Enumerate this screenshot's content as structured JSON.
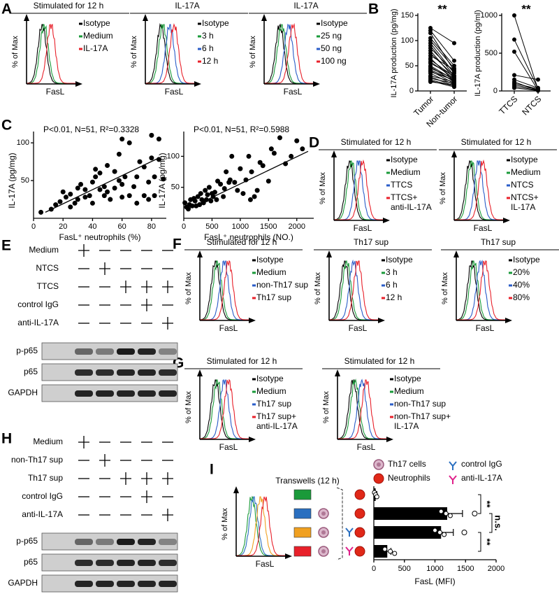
{
  "A": {
    "letter": "A",
    "type": "flow",
    "panels": [
      {
        "title": "Stimulated for 12 h",
        "ylabel": "% of Max",
        "xlabel": "FasL",
        "legend": [
          {
            "name": "Isotype",
            "color": "#000000"
          },
          {
            "name": "Medium",
            "color": "#1a9a3a"
          },
          {
            "name": "IL-17A",
            "color": "#e8202a"
          }
        ]
      },
      {
        "title": "IL-17A",
        "ylabel": "% of Max",
        "xlabel": "FasL",
        "legend": [
          {
            "name": "Isotype",
            "color": "#000000"
          },
          {
            "name": "3 h",
            "color": "#1a9a3a"
          },
          {
            "name": "6 h",
            "color": "#2a5cc8"
          },
          {
            "name": "12 h",
            "color": "#e8202a"
          }
        ]
      },
      {
        "title": "IL-17A",
        "ylabel": "% of Max",
        "xlabel": "FasL",
        "legend": [
          {
            "name": "Isotype",
            "color": "#000000"
          },
          {
            "name": "25 ng",
            "color": "#1a9a3a"
          },
          {
            "name": "50 ng",
            "color": "#2a5cc8"
          },
          {
            "name": "100 ng",
            "color": "#e8202a"
          }
        ]
      }
    ]
  },
  "B": {
    "letter": "B",
    "type": "paired",
    "charts": [
      {
        "ylabel": "IL-17A production (pg/mg)",
        "categories": [
          "Tumor",
          "Non-tumor"
        ],
        "significance": "**",
        "ylim": [
          0,
          150
        ],
        "yticks": [
          0,
          50,
          100,
          150
        ],
        "series": [
          [
            125,
            120,
            115,
            105,
            100,
            95,
            90,
            85,
            80,
            75,
            70,
            65,
            62,
            58,
            55,
            50,
            48,
            45,
            42,
            40,
            38,
            35,
            30,
            28,
            25,
            22,
            20,
            18
          ],
          [
            95,
            60,
            40,
            50,
            45,
            35,
            30,
            38,
            25,
            30,
            42,
            20,
            28,
            25,
            30,
            22,
            18,
            25,
            20,
            15,
            22,
            12,
            18,
            10,
            15,
            10,
            8,
            12
          ]
        ]
      },
      {
        "ylabel": "IL-17A production (pg/ml)",
        "categories": [
          "TTCS",
          "NTCS"
        ],
        "significance": "**",
        "ylim": [
          0,
          1000
        ],
        "yticks": [
          0,
          500,
          1000
        ],
        "series": [
          [
            1000,
            680,
            520,
            210,
            150,
            120,
            100,
            80,
            60,
            40
          ],
          [
            20,
            30,
            10,
            150,
            40,
            5,
            30,
            20,
            10,
            5
          ]
        ]
      }
    ]
  },
  "C": {
    "letter": "C",
    "type": "scatter",
    "charts": [
      {
        "annotation": "P<0.01, N=51, R²=0.3328",
        "xlabel": "FasL⁺ neutrophils (%)",
        "ylabel": "IL-17A (pg/mg)",
        "xlim": [
          0,
          90
        ],
        "xticks": [
          0,
          20,
          40,
          60,
          80
        ],
        "ylim": [
          0,
          115
        ],
        "yticks": [
          50,
          100
        ],
        "x": [
          5,
          12,
          15,
          18,
          20,
          22,
          25,
          28,
          30,
          30,
          32,
          35,
          35,
          38,
          40,
          40,
          42,
          45,
          45,
          48,
          48,
          50,
          50,
          52,
          55,
          55,
          58,
          58,
          60,
          60,
          62,
          65,
          65,
          68,
          70,
          70,
          72,
          75,
          75,
          78,
          78,
          80,
          80,
          82,
          82,
          85,
          85,
          88,
          60,
          42,
          25
        ],
        "values": [
          8,
          12,
          18,
          22,
          35,
          28,
          15,
          20,
          25,
          40,
          45,
          28,
          38,
          30,
          48,
          20,
          55,
          38,
          60,
          30,
          42,
          70,
          35,
          25,
          40,
          62,
          50,
          85,
          28,
          45,
          55,
          30,
          100,
          42,
          55,
          20,
          75,
          68,
          30,
          48,
          25,
          110,
          80,
          55,
          30,
          105,
          78,
          52,
          105,
          65,
          32
        ],
        "fit": {
          "x": [
            8,
            85
          ],
          "values": [
            8,
            80
          ]
        }
      },
      {
        "annotation": "P<0.01, N=51, R²=0.5988",
        "xlabel": "FasL⁺ neutrophils (NO.)",
        "ylabel": "IL-17A (pg/mg)",
        "xlim": [
          0,
          2300
        ],
        "xticks": [
          0,
          500,
          1000,
          1500,
          2000
        ],
        "ylim": [
          0,
          140
        ],
        "yticks": [
          50,
          100
        ],
        "x": [
          20,
          50,
          80,
          100,
          120,
          150,
          180,
          200,
          220,
          250,
          280,
          300,
          320,
          350,
          380,
          400,
          420,
          450,
          480,
          500,
          520,
          550,
          580,
          600,
          650,
          700,
          720,
          750,
          800,
          820,
          850,
          900,
          950,
          1000,
          1050,
          1100,
          1150,
          1180,
          1200,
          1250,
          1300,
          1350,
          1400,
          1500,
          1550,
          1600,
          1700,
          1800,
          1900,
          2000,
          2100
        ],
        "values": [
          25,
          18,
          15,
          22,
          30,
          20,
          32,
          28,
          20,
          35,
          22,
          40,
          30,
          25,
          45,
          30,
          38,
          50,
          28,
          40,
          35,
          42,
          30,
          60,
          55,
          35,
          48,
          75,
          58,
          62,
          100,
          58,
          45,
          80,
          40,
          62,
          100,
          30,
          75,
          35,
          45,
          90,
          85,
          60,
          112,
          105,
          130,
          88,
          100,
          125,
          112
        ],
        "fit": {
          "x": [
            50,
            2200
          ],
          "values": [
            14,
            108
          ]
        }
      }
    ]
  },
  "D": {
    "letter": "D",
    "type": "flow",
    "panels": [
      {
        "title": "Stimulated for 12 h",
        "ylabel": "% of Max",
        "xlabel": "FasL",
        "legend": [
          {
            "name": "Isotype",
            "color": "#000000"
          },
          {
            "name": "Medium",
            "color": "#1a9a3a"
          },
          {
            "name": "TTCS",
            "color": "#2a5cc8"
          },
          {
            "name": "TTCS+\nanti-IL-17A",
            "color": "#e8202a"
          }
        ]
      },
      {
        "title": "Stimulated for 12 h",
        "ylabel": "% of Max",
        "xlabel": "FasL",
        "legend": [
          {
            "name": "Isotype",
            "color": "#000000"
          },
          {
            "name": "Medium",
            "color": "#1a9a3a"
          },
          {
            "name": "NTCS",
            "color": "#2a5cc8"
          },
          {
            "name": "NTCS+\nIL-17A",
            "color": "#e8202a"
          }
        ]
      }
    ]
  },
  "E": {
    "letter": "E",
    "type": "western",
    "treatments": [
      {
        "label": "Medium",
        "on": [
          true,
          false,
          false,
          false,
          false
        ]
      },
      {
        "label": "NTCS",
        "on": [
          false,
          true,
          false,
          false,
          false
        ]
      },
      {
        "label": "TTCS",
        "on": [
          false,
          false,
          true,
          true,
          true
        ]
      },
      {
        "label": "control IgG",
        "on": [
          false,
          false,
          false,
          true,
          false
        ]
      },
      {
        "label": "anti-IL-17A",
        "on": [
          false,
          false,
          false,
          false,
          true
        ]
      }
    ],
    "blots": [
      "p-p65",
      "p65",
      "GAPDH"
    ]
  },
  "F": {
    "letter": "F",
    "type": "flow",
    "panels": [
      {
        "title": "Stimulated for 12 h",
        "ylabel": "% of Max",
        "xlabel": "FasL",
        "legend": [
          {
            "name": "Isotype",
            "color": "#000000"
          },
          {
            "name": "Medium",
            "color": "#1a9a3a"
          },
          {
            "name": "non-Th17 sup",
            "color": "#2a5cc8"
          },
          {
            "name": "Th17 sup",
            "color": "#e8202a"
          }
        ]
      },
      {
        "title": "Th17 sup",
        "ylabel": "% of Max",
        "xlabel": "FasL",
        "legend": [
          {
            "name": "Isotype",
            "color": "#000000"
          },
          {
            "name": "3 h",
            "color": "#1a9a3a"
          },
          {
            "name": "6 h",
            "color": "#2a5cc8"
          },
          {
            "name": "12 h",
            "color": "#e8202a"
          }
        ]
      },
      {
        "title": "Th17 sup",
        "ylabel": "% of Max",
        "xlabel": "FasL",
        "legend": [
          {
            "name": "Isotype",
            "color": "#000000"
          },
          {
            "name": "20%",
            "color": "#1a9a3a"
          },
          {
            "name": "40%",
            "color": "#2a5cc8"
          },
          {
            "name": "80%",
            "color": "#e8202a"
          }
        ]
      }
    ]
  },
  "G": {
    "letter": "G",
    "type": "flow",
    "panels": [
      {
        "title": "Stimulated for 12 h",
        "ylabel": "% of Max",
        "xlabel": "FasL",
        "legend": [
          {
            "name": "Isotype",
            "color": "#000000"
          },
          {
            "name": "Medium",
            "color": "#1a9a3a"
          },
          {
            "name": "Th17 sup",
            "color": "#2a5cc8"
          },
          {
            "name": "Th17 sup+\nanti-IL-17A",
            "color": "#e8202a"
          }
        ]
      },
      {
        "title": "Stimulated for 12 h",
        "ylabel": "% of Max",
        "xlabel": "FasL",
        "legend": [
          {
            "name": "Isotype",
            "color": "#000000"
          },
          {
            "name": "Medium",
            "color": "#1a9a3a"
          },
          {
            "name": "non-Th17 sup",
            "color": "#2a5cc8"
          },
          {
            "name": "non-Th17 sup+\nIL-17A",
            "color": "#e8202a"
          }
        ]
      }
    ]
  },
  "H": {
    "letter": "H",
    "type": "western",
    "treatments": [
      {
        "label": "Medium",
        "on": [
          true,
          false,
          false,
          false,
          false
        ]
      },
      {
        "label": "non-Th17 sup",
        "on": [
          false,
          true,
          false,
          false,
          false
        ]
      },
      {
        "label": "Th17 sup",
        "on": [
          false,
          false,
          true,
          true,
          true
        ]
      },
      {
        "label": "control IgG",
        "on": [
          false,
          false,
          false,
          true,
          false
        ]
      },
      {
        "label": "anti-IL-17A",
        "on": [
          false,
          false,
          false,
          false,
          true
        ]
      }
    ],
    "blots": [
      "p-p65",
      "p65",
      "GAPDH"
    ]
  },
  "I": {
    "letter": "I",
    "type": "hbar",
    "flow": {
      "ylabel": "% of Max",
      "xlabel": "FasL"
    },
    "transwell_label": "Transwells (12 h)",
    "icon_legend": [
      "Th17 cells",
      "Neutrophils",
      "control IgG",
      "anti-IL-17A"
    ],
    "row_colors": [
      "#1a9a3a",
      "#2a6fc0",
      "#f0a020",
      "#e8202a"
    ],
    "values": [
      30,
      1200,
      1100,
      220
    ],
    "errors": [
      20,
      250,
      200,
      60
    ],
    "points": [
      [
        10,
        30,
        50
      ],
      [
        1100,
        1180,
        1250
      ],
      [
        1000,
        1080,
        1150
      ],
      [
        180,
        270,
        340
      ]
    ],
    "open_points": [
      [],
      [
        1650
      ],
      [
        1480
      ],
      []
    ],
    "xlim": [
      0,
      2000
    ],
    "xticks": [
      0,
      500,
      1000,
      1500,
      2000
    ],
    "xlabel": "FasL (MFI)",
    "significance": [
      {
        "label": "**",
        "rows": [
          0,
          1
        ]
      },
      {
        "label": "n.s.",
        "rows": [
          1,
          2
        ]
      },
      {
        "label": "**",
        "rows": [
          2,
          3
        ]
      }
    ]
  }
}
